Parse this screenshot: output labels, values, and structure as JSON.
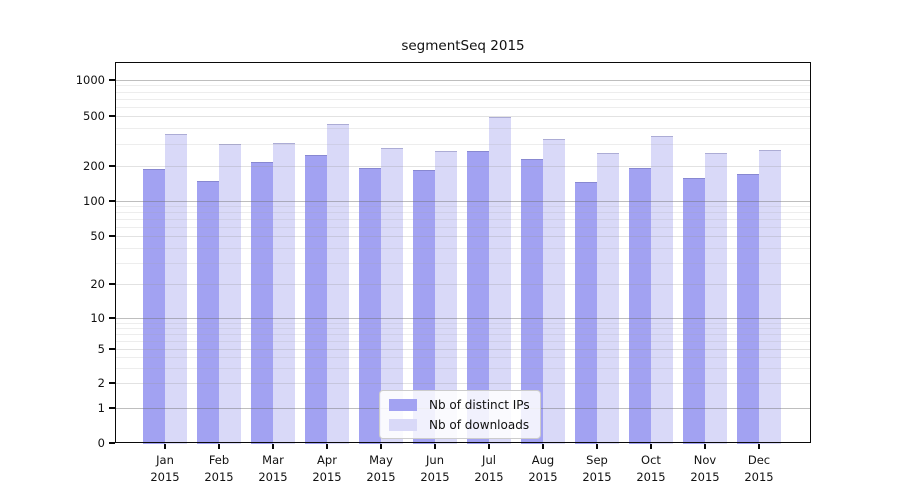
{
  "chart_data": {
    "type": "bar",
    "title": "segmentSeq 2015",
    "categories": [
      {
        "month": "Jan",
        "year": "2015"
      },
      {
        "month": "Feb",
        "year": "2015"
      },
      {
        "month": "Mar",
        "year": "2015"
      },
      {
        "month": "Apr",
        "year": "2015"
      },
      {
        "month": "May",
        "year": "2015"
      },
      {
        "month": "Jun",
        "year": "2015"
      },
      {
        "month": "Jul",
        "year": "2015"
      },
      {
        "month": "Aug",
        "year": "2015"
      },
      {
        "month": "Sep",
        "year": "2015"
      },
      {
        "month": "Oct",
        "year": "2015"
      },
      {
        "month": "Nov",
        "year": "2015"
      },
      {
        "month": "Dec",
        "year": "2015"
      }
    ],
    "series": [
      {
        "name": "Nb of distinct IPs",
        "color": "#a2a2f2",
        "values": [
          190,
          150,
          215,
          245,
          192,
          185,
          262,
          227,
          147,
          192,
          157,
          172
        ]
      },
      {
        "name": "Nb of downloads",
        "color": "#d9d9f8",
        "values": [
          360,
          300,
          305,
          430,
          278,
          265,
          490,
          330,
          255,
          345,
          252,
          270
        ]
      }
    ],
    "xlabel": "",
    "ylabel": "",
    "yscale": "symlog",
    "yticks": [
      0,
      1,
      2,
      5,
      10,
      20,
      50,
      100,
      200,
      500,
      1000
    ],
    "ylim": [
      0,
      1400
    ],
    "grid": true,
    "legend_position": "lower center"
  }
}
